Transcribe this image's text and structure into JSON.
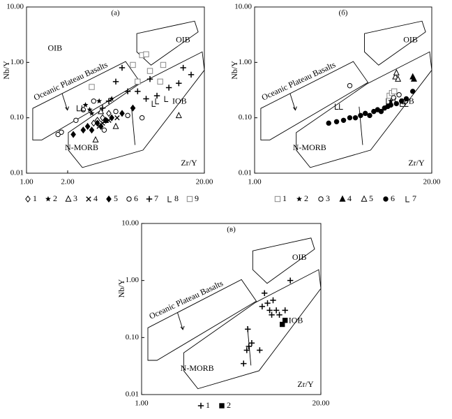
{
  "chart_data": [
    {
      "type": "scatter",
      "title": "(a)",
      "x_label": "Zr/Y",
      "y_label": "Nb/Y",
      "log_scale": true,
      "color": "#000000",
      "xlim": [
        1,
        20
      ],
      "ylim": [
        0.01,
        10
      ],
      "xticks": [
        {
          "value": 1,
          "label": "1.00"
        },
        {
          "value": 2,
          "label": "2.00"
        },
        {
          "value": 20,
          "label": "20.00"
        }
      ],
      "yticks": [
        {
          "value": 0.01,
          "label": "0.01"
        },
        {
          "value": 0.1,
          "label": "0.10"
        },
        {
          "value": 1,
          "label": "1.00"
        },
        {
          "value": 10,
          "label": "10.00"
        }
      ],
      "annotations": [
        "OIB",
        "OIB",
        "Oceanic Plateau Basalts",
        "IOB",
        "N-MORB"
      ],
      "series": [
        {
          "name": "1",
          "marker": "diamond-open",
          "x": [
            3.3,
            3.6,
            3.1,
            4.0
          ],
          "values": [
            0.09,
            0.1,
            0.08,
            0.12
          ]
        },
        {
          "name": "2",
          "marker": "star",
          "x": [
            2.7,
            3.0,
            3.4,
            4.2,
            2.9
          ],
          "values": [
            0.17,
            0.12,
            0.2,
            0.22,
            0.14
          ]
        },
        {
          "name": "3",
          "marker": "triangle-open",
          "x": [
            3.2,
            4.5,
            13,
            3.8,
            3.5
          ],
          "values": [
            0.04,
            0.07,
            0.11,
            0.09,
            0.13
          ]
        },
        {
          "name": "4",
          "marker": "x",
          "x": [
            3.6,
            4.0,
            3.4,
            4.6
          ],
          "values": [
            0.08,
            0.09,
            0.07,
            0.1
          ]
        },
        {
          "name": "5",
          "marker": "diamond",
          "x": [
            2.2,
            2.8,
            3.0,
            3.3,
            3.5,
            3.8,
            4.2,
            5.0,
            6.0,
            2.6
          ],
          "values": [
            0.05,
            0.07,
            0.06,
            0.08,
            0.07,
            0.09,
            0.1,
            0.12,
            0.15,
            0.06
          ]
        },
        {
          "name": "6",
          "marker": "circle-open",
          "x": [
            1.7,
            1.8,
            2.3,
            2.6,
            3.1,
            4.5,
            5.5,
            7.0,
            3.7
          ],
          "values": [
            0.05,
            0.055,
            0.09,
            0.14,
            0.2,
            0.13,
            0.11,
            0.1,
            0.06
          ]
        },
        {
          "name": "7",
          "marker": "plus",
          "x": [
            5.0,
            4.5,
            6.5,
            8.0,
            9.0,
            11,
            14,
            16,
            13,
            5.5,
            4.0,
            3.6,
            7.5
          ],
          "values": [
            0.8,
            0.45,
            0.3,
            0.5,
            0.25,
            0.35,
            0.8,
            0.6,
            0.42,
            0.3,
            0.2,
            0.15,
            0.22
          ]
        },
        {
          "name": "8",
          "marker": "L",
          "x": [
            2.4,
            2.6,
            9,
            10.5,
            8.5
          ],
          "values": [
            0.15,
            0.15,
            0.2,
            0.22,
            0.18
          ]
        },
        {
          "name": "9",
          "marker": "square-open",
          "x": [
            3.0,
            6,
            7,
            7.5,
            9.5,
            6.5,
            8,
            10
          ],
          "values": [
            0.36,
            0.9,
            1.35,
            1.4,
            0.45,
            0.45,
            0.7,
            0.9
          ]
        }
      ]
    },
    {
      "type": "scatter",
      "title": "(б)",
      "x_label": "Zr/Y",
      "y_label": "Nb/Y",
      "log_scale": true,
      "color": "#000000",
      "xlim": [
        1,
        20
      ],
      "ylim": [
        0.01,
        10
      ],
      "xticks": [
        {
          "value": 1,
          "label": "1.00"
        },
        {
          "value": 20,
          "label": "20.00"
        }
      ],
      "yticks": [
        {
          "value": 0.01,
          "label": "0.01"
        },
        {
          "value": 0.1,
          "label": "0.10"
        },
        {
          "value": 1,
          "label": "1.00"
        },
        {
          "value": 10,
          "label": "10.00"
        }
      ],
      "annotations": [
        "OIB",
        "Oceanic Plateau Basalts",
        "IOB",
        "N-MORB"
      ],
      "series": [
        {
          "name": "1",
          "marker": "square-open",
          "x": [
            9.8,
            10.2,
            10.6
          ],
          "values": [
            0.25,
            0.28,
            0.3
          ]
        },
        {
          "name": "2",
          "marker": "star",
          "x": [
            10.0
          ],
          "values": [
            0.2
          ]
        },
        {
          "name": "3",
          "marker": "circle-open",
          "x": [
            5.0,
            10.5,
            11.5
          ],
          "values": [
            0.38,
            0.23,
            0.26
          ]
        },
        {
          "name": "4",
          "marker": "triangle",
          "x": [
            14.5,
            14.8
          ],
          "values": [
            0.55,
            0.5
          ]
        },
        {
          "name": "5",
          "marker": "triangle-open",
          "x": [
            10.8,
            11.0,
            11.3
          ],
          "values": [
            0.55,
            0.65,
            0.5
          ]
        },
        {
          "name": "6",
          "marker": "circle",
          "x": [
            3.5,
            4,
            4.5,
            5,
            5.5,
            6,
            6.5,
            7,
            7.5,
            8,
            8.5,
            9,
            9.5,
            10,
            11,
            12,
            13,
            14.5
          ],
          "values": [
            0.08,
            0.085,
            0.09,
            0.1,
            0.1,
            0.11,
            0.12,
            0.11,
            0.13,
            0.14,
            0.13,
            0.15,
            0.16,
            0.17,
            0.18,
            0.2,
            0.22,
            0.3
          ]
        },
        {
          "name": "7",
          "marker": "L",
          "x": [
            4.0,
            4.3,
            9.5,
            11,
            12,
            13,
            12.5
          ],
          "values": [
            0.16,
            0.16,
            0.2,
            0.2,
            0.18,
            0.18,
            0.2
          ]
        }
      ]
    },
    {
      "type": "scatter",
      "title": "(в)",
      "x_label": "Zr/Y",
      "y_label": "Nb/Y",
      "log_scale": true,
      "color": "#000000",
      "xlim": [
        1,
        20
      ],
      "ylim": [
        0.01,
        10
      ],
      "xticks": [
        {
          "value": 1,
          "label": "1.00"
        },
        {
          "value": 20,
          "label": "20.00"
        }
      ],
      "yticks": [
        {
          "value": 0.01,
          "label": "0.01"
        },
        {
          "value": 0.1,
          "label": "0.10"
        },
        {
          "value": 1,
          "label": "1.00"
        },
        {
          "value": 10,
          "label": "10.00"
        }
      ],
      "annotations": [
        "OIB",
        "Oceanic Plateau Basalts",
        "IOB",
        "N-MORB"
      ],
      "series": [
        {
          "name": "1",
          "marker": "plus",
          "x": [
            5.5,
            5.8,
            6.0,
            6.3,
            7.2,
            7.5,
            7.8,
            8.2,
            8.5,
            8.8,
            9.0,
            9.5,
            10,
            11,
            12,
            5.9
          ],
          "values": [
            0.035,
            0.06,
            0.07,
            0.08,
            0.06,
            0.35,
            0.6,
            0.4,
            0.3,
            0.25,
            0.45,
            0.3,
            0.25,
            0.3,
            1.0,
            0.14
          ]
        },
        {
          "name": "2",
          "marker": "square",
          "x": [
            10.5,
            11
          ],
          "values": [
            0.17,
            0.2
          ]
        }
      ]
    }
  ]
}
